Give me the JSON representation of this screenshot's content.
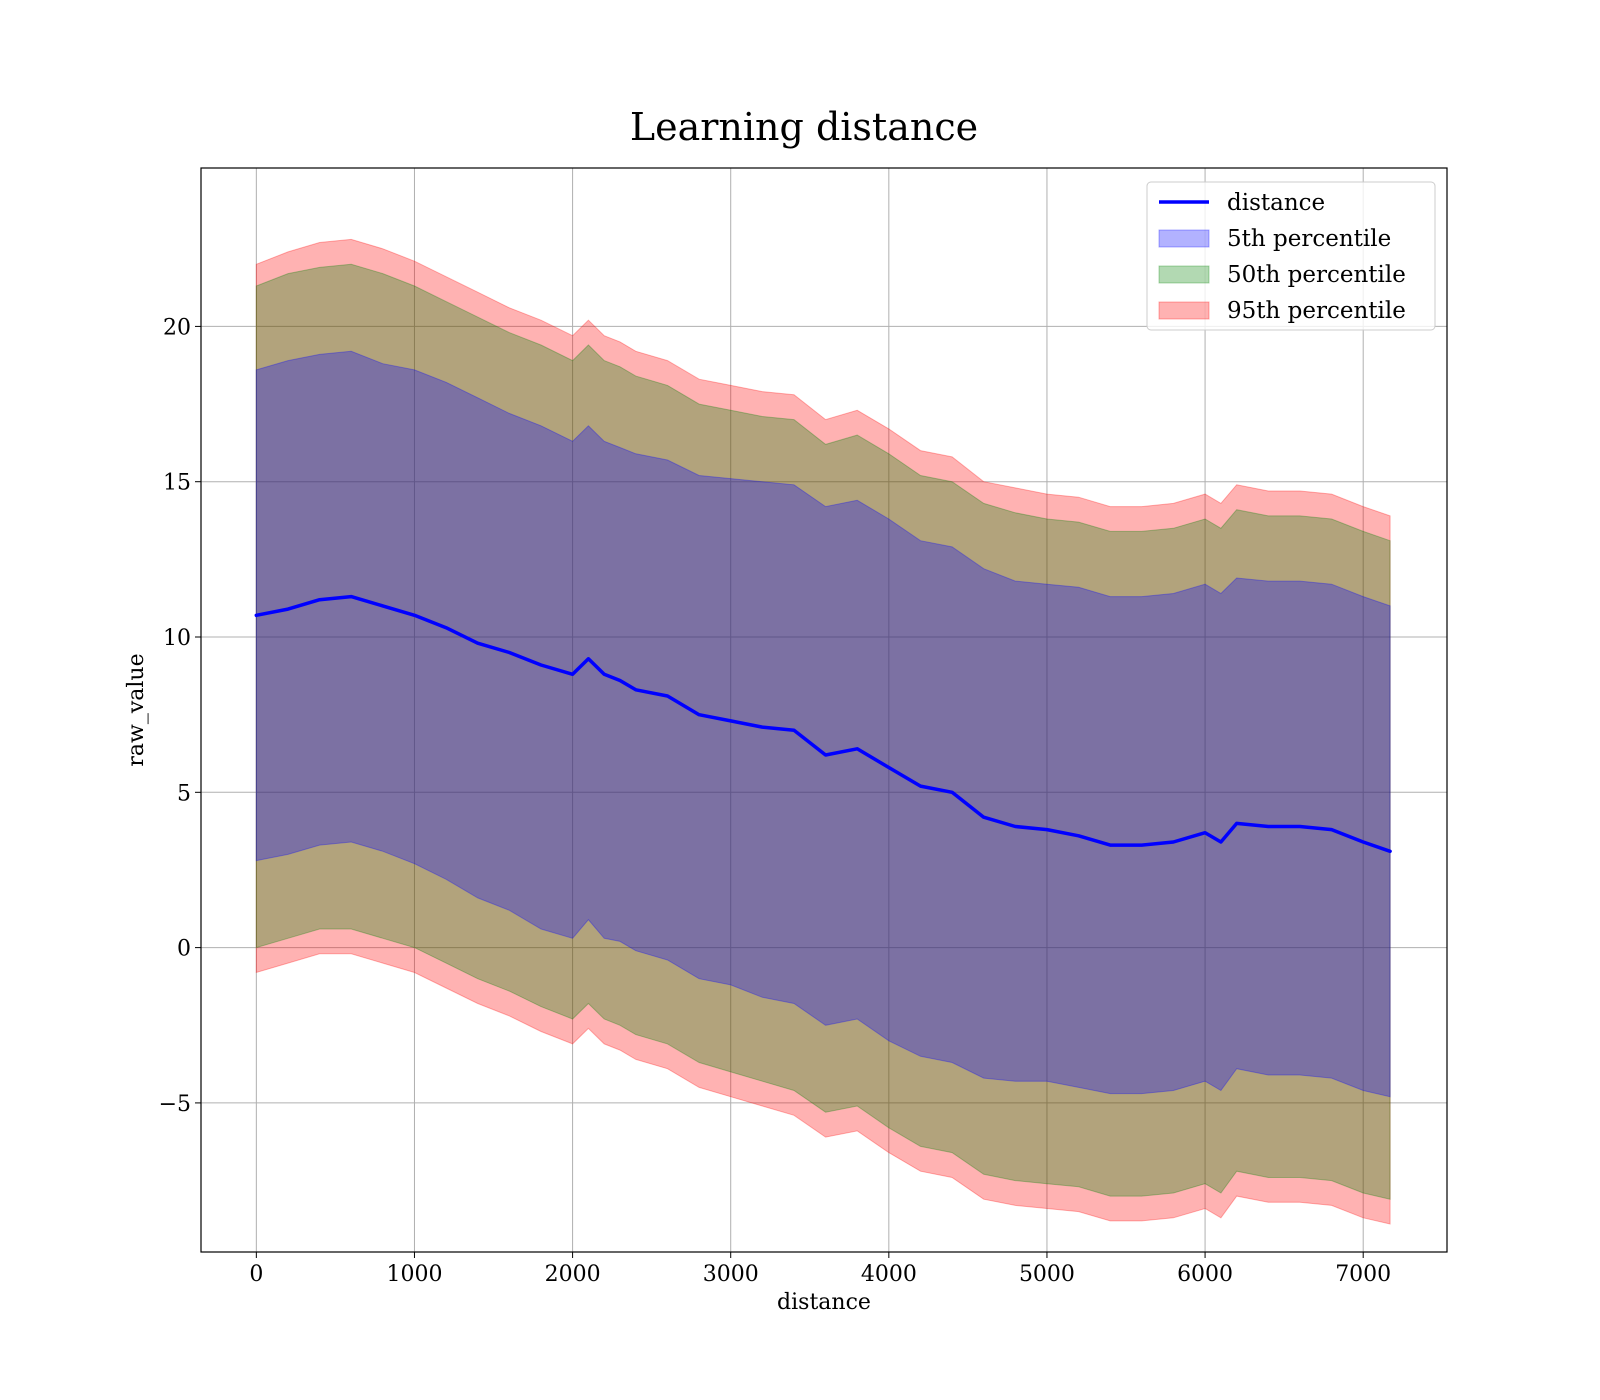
{
  "chart_data": {
    "type": "area",
    "title": "Learning distance",
    "xlabel": "distance",
    "ylabel": "raw_value",
    "xlim": [
      -350,
      7530
    ],
    "ylim": [
      -9.8,
      25.1
    ],
    "xticks": [
      0,
      1000,
      2000,
      3000,
      4000,
      5000,
      6000,
      7000
    ],
    "yticks": [
      -5,
      0,
      5,
      10,
      15,
      20
    ],
    "ytick_labels": [
      "−5",
      "0",
      "5",
      "10",
      "15",
      "20"
    ],
    "grid": true,
    "legend_position": "top-right",
    "legend": [
      {
        "label": "distance",
        "kind": "line",
        "color": "#0000ff"
      },
      {
        "label": "5th percentile",
        "kind": "patch",
        "color": "#0000ff"
      },
      {
        "label": "50th percentile",
        "kind": "patch",
        "color": "#008000"
      },
      {
        "label": "95th percentile",
        "kind": "patch",
        "color": "#ff0000"
      }
    ],
    "x": [
      0,
      200,
      400,
      600,
      800,
      1000,
      1200,
      1400,
      1600,
      1800,
      2000,
      2100,
      2200,
      2300,
      2400,
      2600,
      2800,
      3000,
      3200,
      3400,
      3600,
      3800,
      4000,
      4200,
      4400,
      4600,
      4800,
      5000,
      5200,
      5400,
      5600,
      5800,
      6000,
      6100,
      6200,
      6400,
      6600,
      6800,
      7000,
      7170
    ],
    "series": [
      {
        "name": "distance",
        "kind": "line",
        "color": "#0000ff",
        "width": 3.5,
        "values": [
          10.7,
          10.9,
          11.2,
          11.3,
          11.0,
          10.7,
          10.3,
          9.8,
          9.5,
          9.1,
          8.8,
          9.3,
          8.8,
          8.6,
          8.3,
          8.1,
          7.5,
          7.3,
          7.1,
          7.0,
          6.2,
          6.4,
          5.8,
          5.2,
          5.0,
          4.2,
          3.9,
          3.8,
          3.6,
          3.3,
          3.3,
          3.4,
          3.7,
          3.4,
          4.0,
          3.9,
          3.9,
          3.8,
          3.4,
          3.1
        ]
      },
      {
        "name": "5th percentile",
        "kind": "band",
        "color": "#0000ff",
        "opacity": 0.3,
        "upper": [
          18.6,
          18.9,
          19.1,
          19.2,
          18.8,
          18.6,
          18.2,
          17.7,
          17.2,
          16.8,
          16.3,
          16.8,
          16.3,
          16.1,
          15.9,
          15.7,
          15.2,
          15.1,
          15.0,
          14.9,
          14.2,
          14.4,
          13.8,
          13.1,
          12.9,
          12.2,
          11.8,
          11.7,
          11.6,
          11.3,
          11.3,
          11.4,
          11.7,
          11.4,
          11.9,
          11.8,
          11.8,
          11.7,
          11.3,
          11.0
        ],
        "lower": [
          2.8,
          3.0,
          3.3,
          3.4,
          3.1,
          2.7,
          2.2,
          1.6,
          1.2,
          0.6,
          0.3,
          0.9,
          0.3,
          0.2,
          -0.1,
          -0.4,
          -1.0,
          -1.2,
          -1.6,
          -1.8,
          -2.5,
          -2.3,
          -3.0,
          -3.5,
          -3.7,
          -4.2,
          -4.3,
          -4.3,
          -4.5,
          -4.7,
          -4.7,
          -4.6,
          -4.3,
          -4.6,
          -3.9,
          -4.1,
          -4.1,
          -4.2,
          -4.6,
          -4.8
        ]
      },
      {
        "name": "50th percentile",
        "kind": "band",
        "color": "#008000",
        "opacity": 0.3,
        "upper": [
          21.3,
          21.7,
          21.9,
          22.0,
          21.7,
          21.3,
          20.8,
          20.3,
          19.8,
          19.4,
          18.9,
          19.4,
          18.9,
          18.7,
          18.4,
          18.1,
          17.5,
          17.3,
          17.1,
          17.0,
          16.2,
          16.5,
          15.9,
          15.2,
          15.0,
          14.3,
          14.0,
          13.8,
          13.7,
          13.4,
          13.4,
          13.5,
          13.8,
          13.5,
          14.1,
          13.9,
          13.9,
          13.8,
          13.4,
          13.1
        ],
        "lower": [
          0.0,
          0.3,
          0.6,
          0.6,
          0.3,
          0.0,
          -0.5,
          -1.0,
          -1.4,
          -1.9,
          -2.3,
          -1.8,
          -2.3,
          -2.5,
          -2.8,
          -3.1,
          -3.7,
          -4.0,
          -4.3,
          -4.6,
          -5.3,
          -5.1,
          -5.8,
          -6.4,
          -6.6,
          -7.3,
          -7.5,
          -7.6,
          -7.7,
          -8.0,
          -8.0,
          -7.9,
          -7.6,
          -7.9,
          -7.2,
          -7.4,
          -7.4,
          -7.5,
          -7.9,
          -8.1
        ]
      },
      {
        "name": "95th percentile",
        "kind": "band",
        "color": "#ff0000",
        "opacity": 0.3,
        "upper": [
          22.0,
          22.4,
          22.7,
          22.8,
          22.5,
          22.1,
          21.6,
          21.1,
          20.6,
          20.2,
          19.7,
          20.2,
          19.7,
          19.5,
          19.2,
          18.9,
          18.3,
          18.1,
          17.9,
          17.8,
          17.0,
          17.3,
          16.7,
          16.0,
          15.8,
          15.0,
          14.8,
          14.6,
          14.5,
          14.2,
          14.2,
          14.3,
          14.6,
          14.3,
          14.9,
          14.7,
          14.7,
          14.6,
          14.2,
          13.9
        ],
        "lower": [
          -0.8,
          -0.5,
          -0.2,
          -0.2,
          -0.5,
          -0.8,
          -1.3,
          -1.8,
          -2.2,
          -2.7,
          -3.1,
          -2.6,
          -3.1,
          -3.3,
          -3.6,
          -3.9,
          -4.5,
          -4.8,
          -5.1,
          -5.4,
          -6.1,
          -5.9,
          -6.6,
          -7.2,
          -7.4,
          -8.1,
          -8.3,
          -8.4,
          -8.5,
          -8.8,
          -8.8,
          -8.7,
          -8.4,
          -8.7,
          -8.0,
          -8.2,
          -8.2,
          -8.3,
          -8.7,
          -8.9
        ]
      }
    ]
  }
}
